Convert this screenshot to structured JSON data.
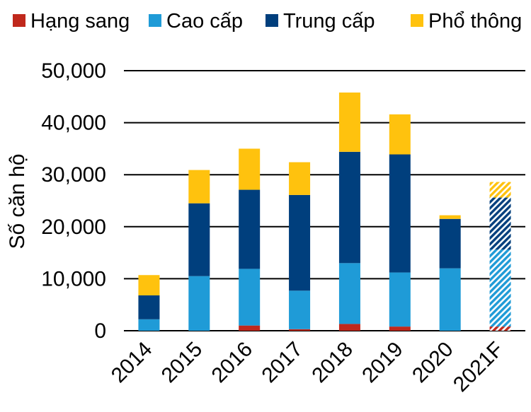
{
  "chart_data": {
    "type": "bar",
    "stacked": true,
    "title": "",
    "xlabel": "",
    "ylabel": "Số căn hộ",
    "ylim": [
      0,
      50000
    ],
    "yticks": [
      0,
      10000,
      20000,
      30000,
      40000,
      50000
    ],
    "ytick_labels": [
      "0",
      "10,000",
      "20,000",
      "30,000",
      "40,000",
      "50,000"
    ],
    "grid": true,
    "legend_position": "top",
    "categories": [
      "2014",
      "2015",
      "2016",
      "2017",
      "2018",
      "2019",
      "2020",
      "2021F"
    ],
    "forecast_categories": [
      "2021F"
    ],
    "series": [
      {
        "name": "Hạng sang",
        "color": "#c0281c",
        "values": [
          0,
          0,
          1000,
          300,
          1300,
          800,
          0,
          800
        ]
      },
      {
        "name": "Cao cấp",
        "color": "#1f9bd7",
        "values": [
          2200,
          10500,
          10900,
          7400,
          11700,
          10400,
          12000,
          14800
        ]
      },
      {
        "name": "Trung cấp",
        "color": "#003f7d",
        "values": [
          4600,
          14000,
          15200,
          18400,
          21400,
          22700,
          9500,
          10000
        ]
      },
      {
        "name": "Phổ thông",
        "color": "#ffc20e",
        "values": [
          3900,
          6400,
          7900,
          6300,
          11400,
          7700,
          700,
          3000
        ]
      }
    ]
  }
}
